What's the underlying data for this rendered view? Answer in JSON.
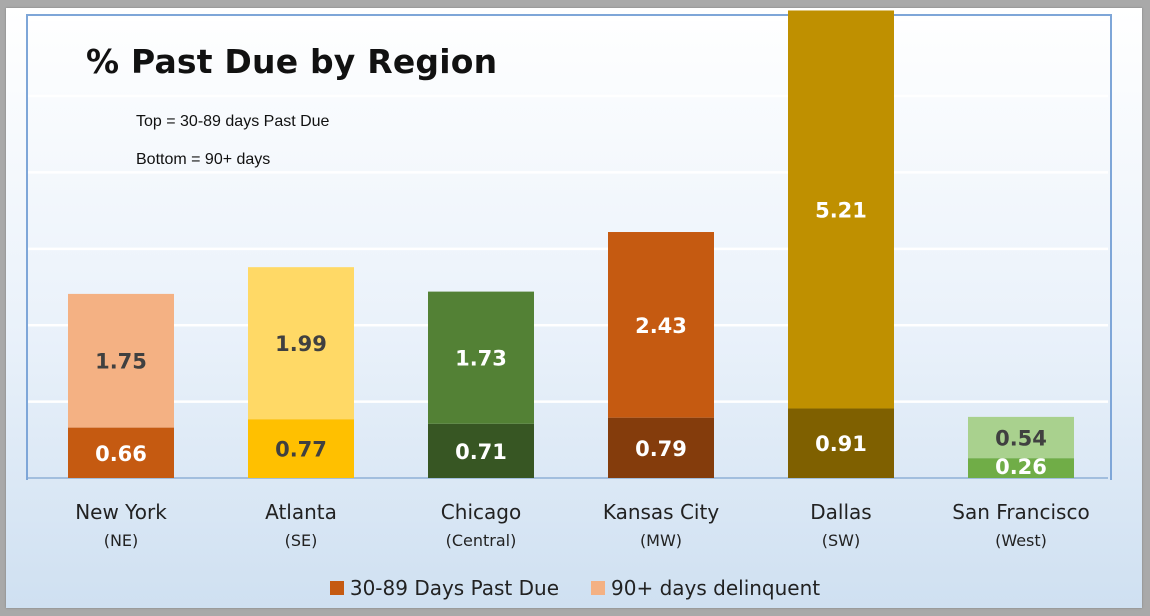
{
  "chart_data": {
    "type": "bar",
    "stacked": true,
    "title": "% Past Due by Region",
    "notes": [
      "Top = 30-89 days Past Due",
      "Bottom = 90+ days"
    ],
    "categories": [
      {
        "name": "New York",
        "sub": "(NE)"
      },
      {
        "name": "Atlanta",
        "sub": "(SE)"
      },
      {
        "name": "Chicago",
        "sub": "(Central)"
      },
      {
        "name": "Kansas City",
        "sub": "(MW)"
      },
      {
        "name": "Dallas",
        "sub": "(SW)"
      },
      {
        "name": "San Francisco",
        "sub": "(West)"
      }
    ],
    "bars": [
      {
        "bottom": 0.66,
        "top": 1.75,
        "bottom_color": "#c55a11",
        "top_color": "#f4b183",
        "bottom_label": "0.66",
        "top_label": "1.75"
      },
      {
        "bottom": 0.77,
        "top": 1.99,
        "bottom_color": "#ffc000",
        "top_color": "#ffd966",
        "bottom_label": "0.77",
        "top_label": "1.99"
      },
      {
        "bottom": 0.71,
        "top": 1.73,
        "bottom_color": "#375623",
        "top_color": "#538135",
        "bottom_label": "0.71",
        "top_label": "1.73"
      },
      {
        "bottom": 0.79,
        "top": 2.43,
        "bottom_color": "#843c0c",
        "top_color": "#c55a11",
        "bottom_label": "0.79",
        "top_label": "2.43"
      },
      {
        "bottom": 0.91,
        "top": 5.21,
        "bottom_color": "#7f6000",
        "top_color": "#bf9000",
        "bottom_label": "0.91",
        "top_label": "5.21"
      },
      {
        "bottom": 0.26,
        "top": 0.54,
        "bottom_color": "#70ad47",
        "top_color": "#a9d18e",
        "bottom_label": "0.26",
        "top_label": "0.54"
      }
    ],
    "ylim": [
      0,
      6.1
    ],
    "gridlines": true,
    "legend": {
      "placement": "bottom",
      "items": [
        {
          "label": "30-89 Days Past Due",
          "color": "#c55a11"
        },
        {
          "label": "90+ days delinquent",
          "color": "#f4b183"
        }
      ]
    }
  }
}
